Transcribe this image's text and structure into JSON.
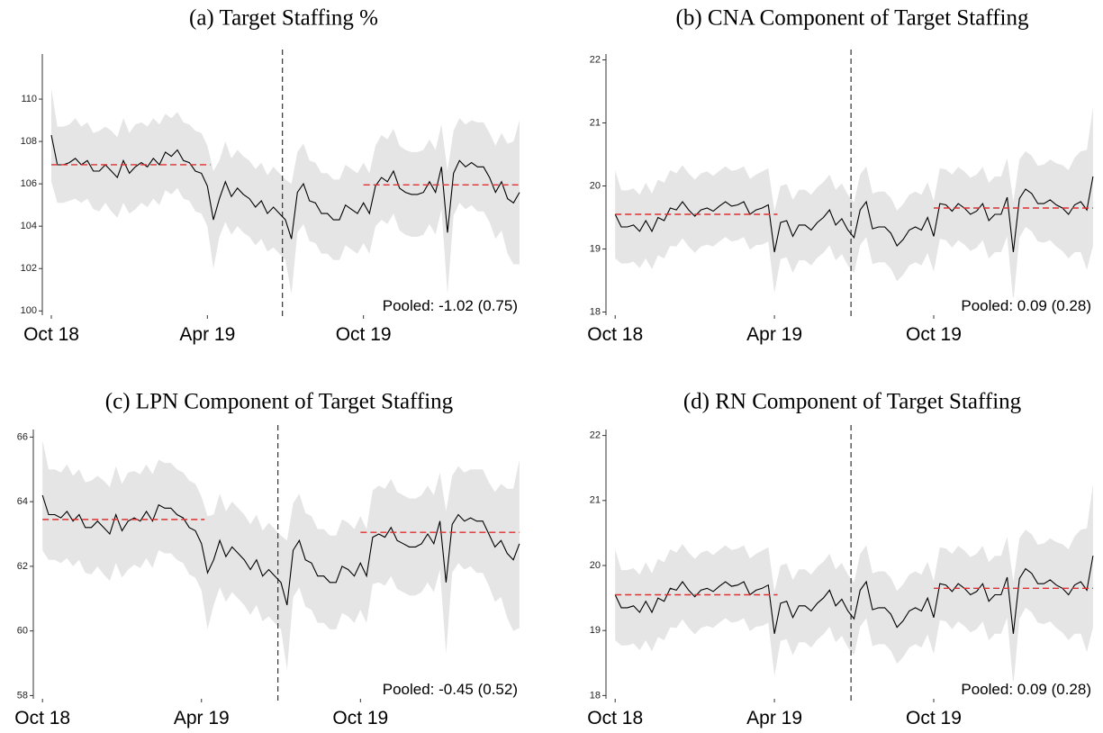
{
  "chart_data": [
    {
      "type": "line",
      "title": "(a) Target Staffing %",
      "x": [
        0,
        1,
        2,
        3,
        4,
        5,
        6,
        7,
        8,
        9,
        10,
        11,
        12,
        13,
        14,
        15,
        16,
        17,
        18,
        19,
        20,
        21,
        22,
        23,
        24,
        25,
        26,
        27,
        28,
        29,
        30,
        31,
        32,
        33,
        34,
        35,
        36,
        37,
        38,
        39,
        40,
        41,
        42,
        43,
        44,
        45,
        46,
        47,
        48,
        49,
        50,
        51,
        52,
        53,
        54,
        55,
        56,
        57,
        58,
        59,
        60,
        61,
        62,
        63,
        64,
        65,
        66,
        67,
        68,
        69,
        70,
        71,
        72,
        73,
        74,
        75,
        76,
        77,
        78
      ],
      "xlim": [
        -1.5,
        78.9
      ],
      "xticks": [
        {
          "value": 0,
          "label": "Oct 18"
        },
        {
          "value": 26,
          "label": "Apr 19"
        },
        {
          "value": 52,
          "label": "Oct 19"
        }
      ],
      "ylim": [
        99.8,
        112
      ],
      "yticks": [
        100,
        102,
        104,
        106,
        108,
        110
      ],
      "band_color": "#e5e5e5",
      "series": [
        {
          "color": "#000000",
          "values": [
            108.3,
            106.9,
            106.9,
            107.0,
            107.2,
            106.9,
            107.1,
            106.6,
            106.6,
            106.9,
            106.6,
            106.3,
            107.1,
            106.5,
            106.8,
            107.0,
            106.8,
            107.2,
            106.9,
            107.5,
            107.3,
            107.6,
            107.1,
            107.0,
            106.6,
            106.5,
            105.9,
            104.3,
            105.3,
            106.1,
            105.4,
            105.8,
            105.5,
            105.3,
            104.9,
            105.2,
            104.6,
            104.9,
            104.6,
            104.3,
            103.4,
            105.6,
            106.0,
            105.2,
            105.1,
            104.6,
            104.6,
            104.3,
            104.3,
            105.0,
            104.8,
            104.6,
            105.1,
            104.6,
            105.9,
            106.3,
            106.1,
            106.6,
            105.8,
            105.6,
            105.5,
            105.5,
            105.6,
            106.1,
            105.6,
            106.8,
            103.7,
            106.5,
            107.1,
            106.8,
            107.0,
            106.8,
            106.8,
            106.3,
            105.6,
            106.1,
            105.3,
            105.1,
            105.6
          ],
          "errors": [
            2.2,
            1.8,
            1.8,
            1.8,
            1.9,
            1.8,
            1.8,
            1.8,
            1.9,
            1.8,
            1.9,
            1.9,
            2.0,
            1.9,
            2.0,
            1.9,
            1.9,
            1.9,
            1.9,
            1.8,
            1.8,
            1.8,
            1.8,
            1.8,
            1.9,
            1.9,
            1.9,
            2.3,
            1.8,
            1.9,
            1.8,
            1.8,
            1.8,
            1.8,
            1.8,
            1.8,
            1.8,
            1.9,
            1.9,
            1.9,
            2.6,
            1.9,
            1.9,
            1.9,
            1.9,
            1.9,
            1.9,
            1.9,
            1.9,
            1.9,
            1.9,
            1.9,
            1.9,
            1.9,
            1.9,
            2.0,
            2.0,
            2.0,
            2.0,
            2.0,
            2.0,
            2.0,
            2.0,
            2.0,
            2.0,
            2.0,
            2.9,
            2.0,
            2.0,
            2.0,
            2.0,
            2.1,
            2.1,
            2.1,
            2.2,
            2.3,
            2.6,
            2.9,
            3.4
          ]
        }
      ],
      "hlines": [
        {
          "from": 0,
          "to": 26.5,
          "value": 106.9,
          "color": "#e03030"
        },
        {
          "from": 52,
          "to": 78,
          "value": 105.95,
          "color": "#e03030"
        }
      ],
      "vline": 38.5,
      "annotation": "Pooled: -1.02 (0.75)"
    },
    {
      "type": "line",
      "title": "(b) CNA Component of Target Staffing",
      "x": [
        0,
        1,
        2,
        3,
        4,
        5,
        6,
        7,
        8,
        9,
        10,
        11,
        12,
        13,
        14,
        15,
        16,
        17,
        18,
        19,
        20,
        21,
        22,
        23,
        24,
        25,
        26,
        27,
        28,
        29,
        30,
        31,
        32,
        33,
        34,
        35,
        36,
        37,
        38,
        39,
        40,
        41,
        42,
        43,
        44,
        45,
        46,
        47,
        48,
        49,
        50,
        51,
        52,
        53,
        54,
        55,
        56,
        57,
        58,
        59,
        60,
        61,
        62,
        63,
        64,
        65,
        66,
        67,
        68,
        69,
        70,
        71,
        72,
        73,
        74,
        75,
        76,
        77,
        78
      ],
      "xlim": [
        -1.5,
        78.9
      ],
      "xticks": [
        {
          "value": 0,
          "label": "Oct 18"
        },
        {
          "value": 26,
          "label": "Apr 19"
        },
        {
          "value": 52,
          "label": "Oct 19"
        }
      ],
      "ylim": [
        17.95,
        22.05
      ],
      "yticks": [
        18,
        19,
        20,
        21,
        22
      ],
      "band_color": "#e5e5e5",
      "series": [
        {
          "color": "#000000",
          "values": [
            19.55,
            19.35,
            19.35,
            19.38,
            19.28,
            19.45,
            19.28,
            19.5,
            19.45,
            19.65,
            19.62,
            19.75,
            19.62,
            19.52,
            19.62,
            19.65,
            19.6,
            19.68,
            19.75,
            19.68,
            19.7,
            19.75,
            19.55,
            19.62,
            19.65,
            19.7,
            18.95,
            19.42,
            19.45,
            19.2,
            19.38,
            19.38,
            19.3,
            19.42,
            19.5,
            19.62,
            19.38,
            19.48,
            19.3,
            19.18,
            19.62,
            19.75,
            19.32,
            19.35,
            19.35,
            19.25,
            19.05,
            19.15,
            19.3,
            19.35,
            19.3,
            19.5,
            19.2,
            19.72,
            19.7,
            19.6,
            19.72,
            19.65,
            19.55,
            19.6,
            19.72,
            19.45,
            19.55,
            19.55,
            19.82,
            18.95,
            19.8,
            19.95,
            19.88,
            19.72,
            19.72,
            19.78,
            19.7,
            19.65,
            19.55,
            19.7,
            19.75,
            19.62,
            20.15
          ],
          "errors": [
            0.7,
            0.58,
            0.58,
            0.58,
            0.58,
            0.6,
            0.6,
            0.6,
            0.6,
            0.6,
            0.58,
            0.58,
            0.58,
            0.58,
            0.58,
            0.58,
            0.56,
            0.56,
            0.56,
            0.56,
            0.56,
            0.56,
            0.56,
            0.56,
            0.58,
            0.58,
            0.65,
            0.58,
            0.58,
            0.58,
            0.56,
            0.56,
            0.56,
            0.56,
            0.56,
            0.56,
            0.56,
            0.56,
            0.56,
            0.56,
            0.56,
            0.56,
            0.56,
            0.56,
            0.56,
            0.56,
            0.56,
            0.56,
            0.56,
            0.56,
            0.56,
            0.56,
            0.56,
            0.56,
            0.56,
            0.58,
            0.58,
            0.58,
            0.58,
            0.58,
            0.58,
            0.6,
            0.6,
            0.6,
            0.62,
            0.8,
            0.62,
            0.6,
            0.6,
            0.6,
            0.62,
            0.64,
            0.66,
            0.68,
            0.7,
            0.75,
            0.8,
            0.95,
            1.1
          ]
        }
      ],
      "hlines": [
        {
          "from": 0,
          "to": 26.5,
          "value": 19.55,
          "color": "#e03030"
        },
        {
          "from": 52,
          "to": 78,
          "value": 19.65,
          "color": "#e03030"
        }
      ],
      "vline": 38.5,
      "annotation": "Pooled: 0.09 (0.28)"
    },
    {
      "type": "line",
      "title": "(c) LPN Component of Target Staffing",
      "x": [
        0,
        1,
        2,
        3,
        4,
        5,
        6,
        7,
        8,
        9,
        10,
        11,
        12,
        13,
        14,
        15,
        16,
        17,
        18,
        19,
        20,
        21,
        22,
        23,
        24,
        25,
        26,
        27,
        28,
        29,
        30,
        31,
        32,
        33,
        34,
        35,
        36,
        37,
        38,
        39,
        40,
        41,
        42,
        43,
        44,
        45,
        46,
        47,
        48,
        49,
        50,
        51,
        52,
        53,
        54,
        55,
        56,
        57,
        58,
        59,
        60,
        61,
        62,
        63,
        64,
        65,
        66,
        67,
        68,
        69,
        70,
        71,
        72,
        73,
        74,
        75,
        76,
        77,
        78
      ],
      "xlim": [
        -1.5,
        78.9
      ],
      "xticks": [
        {
          "value": 0,
          "label": "Oct 18"
        },
        {
          "value": 26,
          "label": "Apr 19"
        },
        {
          "value": 52,
          "label": "Oct 19"
        }
      ],
      "ylim": [
        57.9,
        66.15
      ],
      "yticks": [
        58,
        60,
        62,
        64,
        66
      ],
      "band_color": "#e5e5e5",
      "series": [
        {
          "color": "#000000",
          "values": [
            64.2,
            63.6,
            63.6,
            63.5,
            63.7,
            63.4,
            63.6,
            63.2,
            63.2,
            63.4,
            63.2,
            63.0,
            63.6,
            63.1,
            63.4,
            63.5,
            63.4,
            63.7,
            63.4,
            63.9,
            63.8,
            63.8,
            63.6,
            63.5,
            63.2,
            63.1,
            62.7,
            61.8,
            62.2,
            62.8,
            62.3,
            62.6,
            62.4,
            62.2,
            61.9,
            62.2,
            61.7,
            61.9,
            61.7,
            61.5,
            60.8,
            62.5,
            62.8,
            62.2,
            62.1,
            61.7,
            61.7,
            61.5,
            61.5,
            62.0,
            61.9,
            61.7,
            62.1,
            61.7,
            62.9,
            63.0,
            62.9,
            63.2,
            62.8,
            62.7,
            62.6,
            62.6,
            62.7,
            63.0,
            62.7,
            63.4,
            61.5,
            63.3,
            63.6,
            63.4,
            63.5,
            63.4,
            63.4,
            63.0,
            62.6,
            62.8,
            62.4,
            62.2,
            62.7
          ],
          "errors": [
            1.7,
            1.4,
            1.4,
            1.4,
            1.45,
            1.4,
            1.4,
            1.4,
            1.45,
            1.4,
            1.45,
            1.45,
            1.5,
            1.45,
            1.5,
            1.45,
            1.45,
            1.45,
            1.45,
            1.4,
            1.4,
            1.4,
            1.4,
            1.4,
            1.45,
            1.45,
            1.45,
            1.75,
            1.4,
            1.45,
            1.4,
            1.4,
            1.4,
            1.4,
            1.4,
            1.4,
            1.4,
            1.45,
            1.45,
            1.45,
            2.0,
            1.45,
            1.45,
            1.45,
            1.45,
            1.45,
            1.45,
            1.45,
            1.45,
            1.45,
            1.45,
            1.45,
            1.45,
            1.45,
            1.45,
            1.5,
            1.5,
            1.5,
            1.5,
            1.5,
            1.5,
            1.5,
            1.5,
            1.5,
            1.5,
            1.5,
            2.2,
            1.5,
            1.5,
            1.5,
            1.5,
            1.6,
            1.6,
            1.6,
            1.7,
            1.75,
            2.0,
            2.2,
            2.6
          ]
        }
      ],
      "hlines": [
        {
          "from": 0,
          "to": 26.5,
          "value": 63.45,
          "color": "#e03030"
        },
        {
          "from": 52,
          "to": 78,
          "value": 63.05,
          "color": "#e03030"
        }
      ],
      "vline": 38.5,
      "annotation": "Pooled: -0.45 (0.52)"
    },
    {
      "type": "line",
      "title": "(d) RN Component of Target Staffing",
      "x": [
        0,
        1,
        2,
        3,
        4,
        5,
        6,
        7,
        8,
        9,
        10,
        11,
        12,
        13,
        14,
        15,
        16,
        17,
        18,
        19,
        20,
        21,
        22,
        23,
        24,
        25,
        26,
        27,
        28,
        29,
        30,
        31,
        32,
        33,
        34,
        35,
        36,
        37,
        38,
        39,
        40,
        41,
        42,
        43,
        44,
        45,
        46,
        47,
        48,
        49,
        50,
        51,
        52,
        53,
        54,
        55,
        56,
        57,
        58,
        59,
        60,
        61,
        62,
        63,
        64,
        65,
        66,
        67,
        68,
        69,
        70,
        71,
        72,
        73,
        74,
        75,
        76,
        77,
        78
      ],
      "xlim": [
        -1.5,
        78.9
      ],
      "xticks": [
        {
          "value": 0,
          "label": "Oct 18"
        },
        {
          "value": 26,
          "label": "Apr 19"
        },
        {
          "value": 52,
          "label": "Oct 19"
        }
      ],
      "ylim": [
        17.95,
        22.05
      ],
      "yticks": [
        18,
        19,
        20,
        21,
        22
      ],
      "band_color": "#e5e5e5",
      "series": [
        {
          "color": "#000000",
          "values": [
            19.55,
            19.35,
            19.35,
            19.38,
            19.28,
            19.45,
            19.28,
            19.5,
            19.45,
            19.65,
            19.62,
            19.75,
            19.62,
            19.52,
            19.62,
            19.65,
            19.6,
            19.68,
            19.75,
            19.68,
            19.7,
            19.75,
            19.55,
            19.62,
            19.65,
            19.7,
            18.95,
            19.42,
            19.45,
            19.2,
            19.38,
            19.38,
            19.3,
            19.42,
            19.5,
            19.62,
            19.38,
            19.48,
            19.3,
            19.18,
            19.62,
            19.75,
            19.32,
            19.35,
            19.35,
            19.25,
            19.05,
            19.15,
            19.3,
            19.35,
            19.3,
            19.5,
            19.2,
            19.72,
            19.7,
            19.6,
            19.72,
            19.65,
            19.55,
            19.6,
            19.72,
            19.45,
            19.55,
            19.55,
            19.82,
            18.95,
            19.8,
            19.95,
            19.88,
            19.72,
            19.72,
            19.78,
            19.7,
            19.65,
            19.55,
            19.7,
            19.75,
            19.62,
            20.15
          ],
          "errors": [
            0.7,
            0.58,
            0.58,
            0.58,
            0.58,
            0.6,
            0.6,
            0.6,
            0.6,
            0.6,
            0.58,
            0.58,
            0.58,
            0.58,
            0.58,
            0.58,
            0.56,
            0.56,
            0.56,
            0.56,
            0.56,
            0.56,
            0.56,
            0.56,
            0.58,
            0.58,
            0.65,
            0.58,
            0.58,
            0.58,
            0.56,
            0.56,
            0.56,
            0.56,
            0.56,
            0.56,
            0.56,
            0.56,
            0.56,
            0.56,
            0.56,
            0.56,
            0.56,
            0.56,
            0.56,
            0.56,
            0.56,
            0.56,
            0.56,
            0.56,
            0.56,
            0.56,
            0.56,
            0.56,
            0.56,
            0.58,
            0.58,
            0.58,
            0.58,
            0.58,
            0.58,
            0.6,
            0.6,
            0.6,
            0.62,
            0.8,
            0.62,
            0.6,
            0.6,
            0.6,
            0.62,
            0.64,
            0.66,
            0.68,
            0.7,
            0.75,
            0.8,
            0.95,
            1.1
          ]
        }
      ],
      "hlines": [
        {
          "from": 0,
          "to": 26.5,
          "value": 19.55,
          "color": "#e03030"
        },
        {
          "from": 52,
          "to": 78,
          "value": 19.65,
          "color": "#e03030"
        }
      ],
      "vline": 38.5,
      "annotation": "Pooled: 0.09 (0.28)"
    }
  ]
}
